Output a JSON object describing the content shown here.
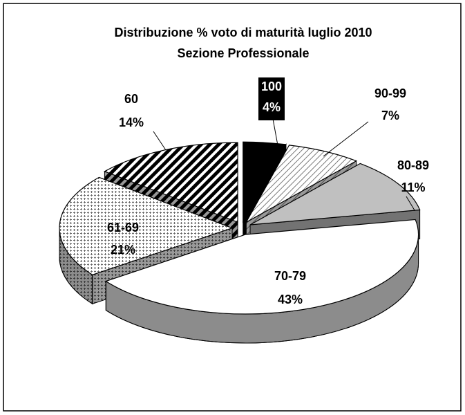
{
  "chart_data": {
    "type": "pie3d",
    "title": "Distribuzione % voto di maturità luglio 2010",
    "subtitle": "Sezione Professionale",
    "categories": [
      "100",
      "90-99",
      "80-89",
      "70-79",
      "61-69",
      "60"
    ],
    "values": [
      4,
      7,
      11,
      43,
      21,
      14
    ],
    "value_labels": [
      "4%",
      "7%",
      "11%",
      "43%",
      "21%",
      "14%"
    ]
  }
}
